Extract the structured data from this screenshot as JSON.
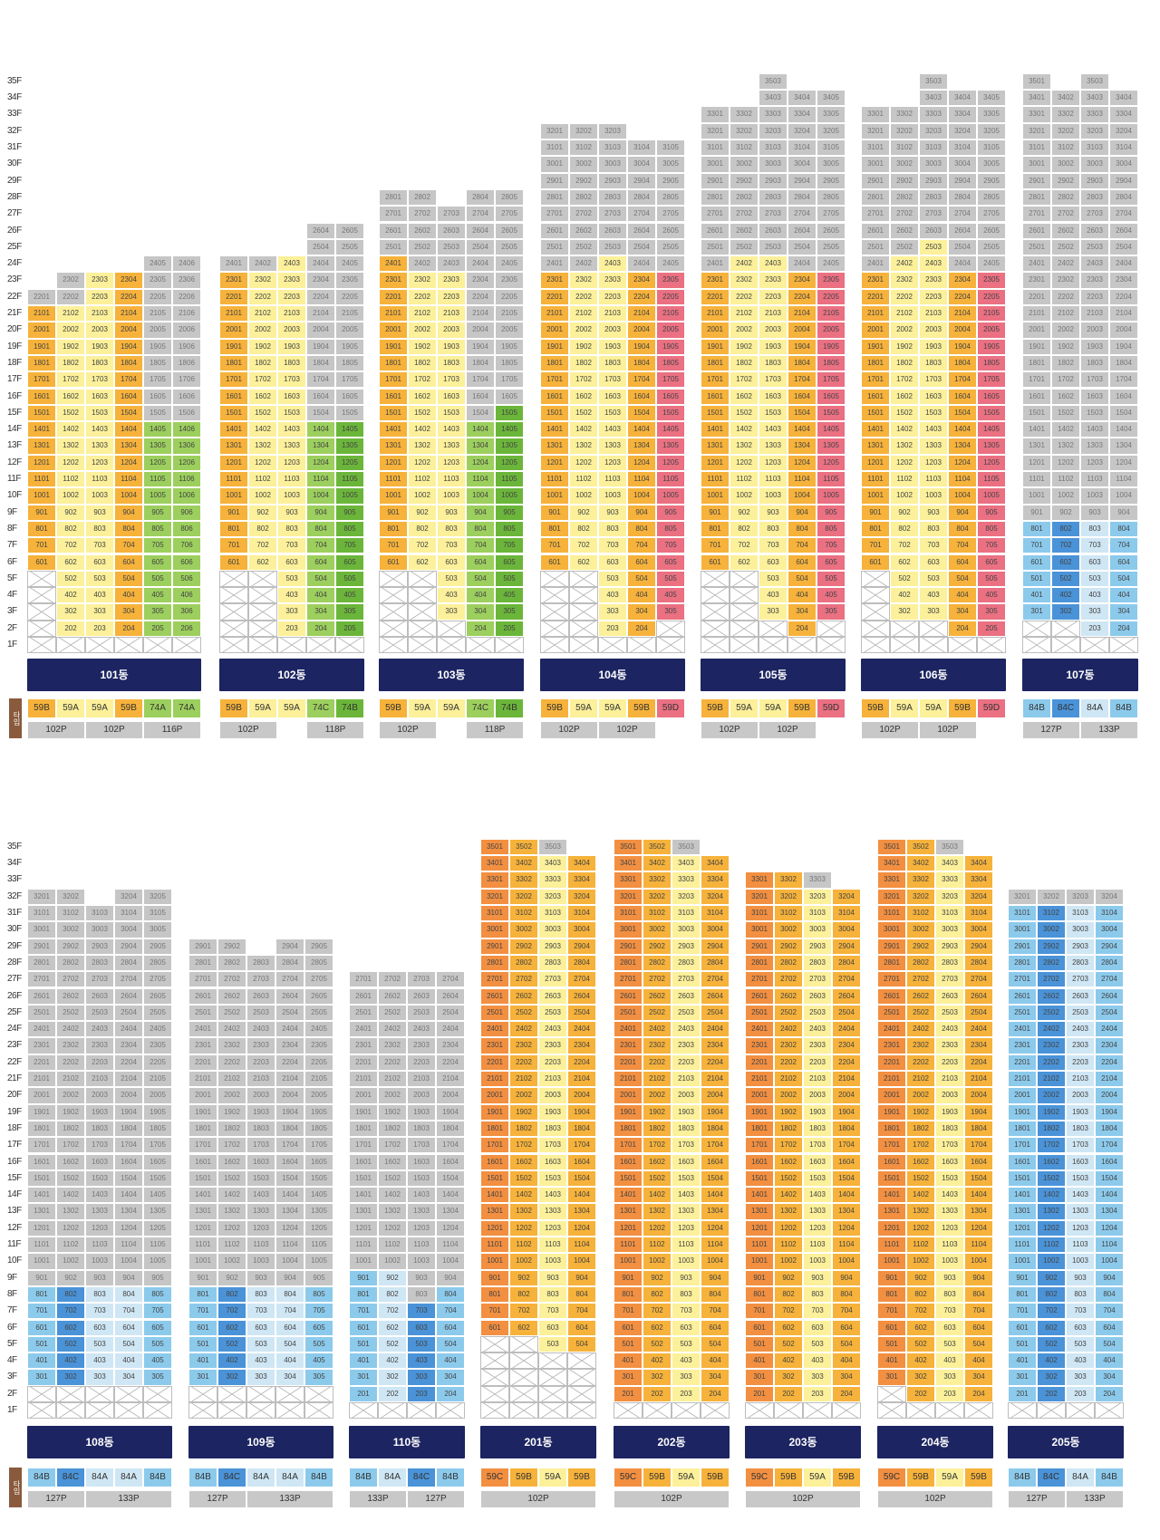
{
  "colors": {
    "59A": "#fcf09a",
    "59B": "#f6b23a",
    "59C": "#f28f41",
    "59D": "#ea7082",
    "74A": "#9ccf5d",
    "74B": "#6bb63a",
    "74C": "#9ccf5d",
    "84A": "#cfe6f4",
    "84B": "#8ccaec",
    "84C": "#4a93d8",
    "sold": "#c6c6c6",
    "bar": "#1c2461",
    "tag": "#8a5a3c"
  },
  "type_tag": "타입",
  "panels": [
    {
      "floor_labels": [
        "35F",
        "34F",
        "33F",
        "32F",
        "31F",
        "30F",
        "29F",
        "28F",
        "27F",
        "26F",
        "25F",
        "24F",
        "23F",
        "22F",
        "21F",
        "20F",
        "19F",
        "18F",
        "17F",
        "16F",
        "15F",
        "14F",
        "13F",
        "12F",
        "11F",
        "10F",
        "9F",
        "8F",
        "7F",
        "6F",
        "5F",
        "4F",
        "3F",
        "2F",
        "1F"
      ],
      "buildings": [
        {
          "label": "101동",
          "cols": 6,
          "max": [
            22,
            23,
            23,
            23,
            24,
            24
          ],
          "avail": [
            [
              6,
              21
            ],
            [
              2,
              21
            ],
            [
              2,
              23
            ],
            [
              2,
              23
            ],
            [
              2,
              14
            ],
            [
              2,
              14
            ]
          ],
          "nums": [
            1,
            2,
            3,
            4,
            5,
            6
          ],
          "types": [
            "59B",
            "59A",
            "59A",
            "59B",
            "74A",
            "74A"
          ],
          "p": [
            [
              "102P",
              2
            ],
            [
              "102P",
              2
            ],
            [
              "116P",
              2
            ]
          ]
        },
        {
          "label": "102동",
          "cols": 5,
          "max": [
            24,
            24,
            24,
            26,
            26
          ],
          "avail": [
            [
              6,
              23
            ],
            [
              6,
              23
            ],
            [
              2,
              24
            ],
            [
              2,
              14
            ],
            [
              2,
              14
            ]
          ],
          "nums": [
            1,
            2,
            3,
            4,
            5
          ],
          "types": [
            "59B",
            "59A",
            "59A",
            "74C",
            "74B"
          ],
          "p": [
            [
              "102P",
              2
            ],
            [
              "",
              1
            ],
            [
              "118P",
              2
            ]
          ]
        },
        {
          "label": "103동",
          "cols": 5,
          "max": [
            28,
            28,
            27,
            28,
            28
          ],
          "avail": [
            [
              6,
              24
            ],
            [
              6,
              23
            ],
            [
              3,
              23
            ],
            [
              2,
              14
            ],
            [
              2,
              15
            ]
          ],
          "nums": [
            1,
            2,
            3,
            4,
            5
          ],
          "types": [
            "59B",
            "59A",
            "59A",
            "74C",
            "74B"
          ],
          "p": [
            [
              "102P",
              2
            ],
            [
              "",
              1
            ],
            [
              "118P",
              2
            ]
          ]
        },
        {
          "label": "104동",
          "cols": 5,
          "max": [
            32,
            32,
            32,
            31,
            31
          ],
          "avail": [
            [
              6,
              23
            ],
            [
              6,
              23
            ],
            [
              2,
              24
            ],
            [
              2,
              23
            ],
            [
              3,
              23
            ]
          ],
          "nums": [
            1,
            2,
            3,
            4,
            5
          ],
          "types": [
            "59B",
            "59A",
            "59A",
            "59B",
            "59D"
          ],
          "p": [
            [
              "102P",
              2
            ],
            [
              "102P",
              2
            ],
            [
              "",
              1
            ]
          ]
        },
        {
          "label": "105동",
          "cols": 5,
          "max": [
            33,
            33,
            35,
            34,
            34
          ],
          "avail": [
            [
              6,
              23
            ],
            [
              6,
              24
            ],
            [
              3,
              24
            ],
            [
              2,
              23
            ],
            [
              3,
              23
            ]
          ],
          "nums": [
            1,
            2,
            3,
            4,
            5
          ],
          "types": [
            "59B",
            "59A",
            "59A",
            "59B",
            "59D"
          ],
          "p": [
            [
              "102P",
              2
            ],
            [
              "102P",
              2
            ],
            [
              "",
              1
            ]
          ]
        },
        {
          "label": "106동",
          "cols": 5,
          "max": [
            33,
            33,
            35,
            34,
            34
          ],
          "avail": [
            [
              6,
              23
            ],
            [
              3,
              24
            ],
            [
              3,
              25
            ],
            [
              2,
              23
            ],
            [
              2,
              23
            ]
          ],
          "nums": [
            1,
            2,
            3,
            4,
            5
          ],
          "types": [
            "59B",
            "59A",
            "59A",
            "59B",
            "59D"
          ],
          "p": [
            [
              "102P",
              2
            ],
            [
              "102P",
              2
            ],
            [
              "",
              1
            ]
          ]
        },
        {
          "label": "107동",
          "cols": 4,
          "max": [
            35,
            34,
            35,
            34
          ],
          "avail": [
            [
              3,
              8
            ],
            [
              3,
              8
            ],
            [
              2,
              8
            ],
            [
              2,
              8
            ]
          ],
          "nums": [
            1,
            2,
            3,
            4
          ],
          "types": [
            "84B",
            "84C",
            "84A",
            "84B"
          ],
          "p": [
            [
              "127P",
              2
            ],
            [
              "133P",
              2
            ]
          ]
        }
      ]
    },
    {
      "floor_labels": [
        "35F",
        "34F",
        "33F",
        "32F",
        "31F",
        "30F",
        "29F",
        "28F",
        "27F",
        "26F",
        "25F",
        "24F",
        "23F",
        "22F",
        "21F",
        "20F",
        "19F",
        "18F",
        "17F",
        "16F",
        "15F",
        "14F",
        "13F",
        "12F",
        "11F",
        "10F",
        "9F",
        "8F",
        "7F",
        "6F",
        "5F",
        "4F",
        "3F",
        "2F",
        "1F"
      ],
      "buildings": [
        {
          "label": "108동",
          "cols": 5,
          "max": [
            32,
            32,
            31,
            32,
            32
          ],
          "avail": [
            [
              3,
              8
            ],
            [
              3,
              8
            ],
            [
              3,
              8
            ],
            [
              3,
              8
            ],
            [
              3,
              8
            ]
          ],
          "nums": [
            1,
            2,
            3,
            4,
            5
          ],
          "types": [
            "84B",
            "84C",
            "84A",
            "84A",
            "84B"
          ],
          "p": [
            [
              "127P",
              2
            ],
            [
              "133P",
              3
            ]
          ]
        },
        {
          "label": "109동",
          "cols": 5,
          "max": [
            29,
            29,
            28,
            29,
            29
          ],
          "avail": [
            [
              3,
              8
            ],
            [
              3,
              8
            ],
            [
              3,
              8
            ],
            [
              3,
              8
            ],
            [
              3,
              8
            ]
          ],
          "nums": [
            1,
            2,
            3,
            4,
            5
          ],
          "types": [
            "84B",
            "84C",
            "84A",
            "84A",
            "84B"
          ],
          "p": [
            [
              "127P",
              2
            ],
            [
              "133P",
              3
            ]
          ]
        },
        {
          "label": "110동",
          "cols": 4,
          "max": [
            27,
            27,
            27,
            27
          ],
          "avail": [
            [
              2,
              9
            ],
            [
              2,
              9
            ],
            [
              2,
              7
            ],
            [
              2,
              8
            ]
          ],
          "nums": [
            1,
            2,
            3,
            4
          ],
          "types": [
            "84B",
            "84A",
            "84C",
            "84B"
          ],
          "p": [
            [
              "133P",
              2
            ],
            [
              "127P",
              2
            ]
          ]
        },
        {
          "label": "201동",
          "cols": 4,
          "max": [
            35,
            35,
            35,
            34
          ],
          "avail": [
            [
              6,
              35
            ],
            [
              6,
              35
            ],
            [
              5,
              34
            ],
            [
              5,
              34
            ]
          ],
          "nums": [
            1,
            2,
            3,
            4
          ],
          "types": [
            "59C",
            "59B",
            "59A",
            "59B"
          ],
          "p": [
            [
              "102P",
              4
            ]
          ]
        },
        {
          "label": "202동",
          "cols": 4,
          "max": [
            35,
            35,
            35,
            34
          ],
          "avail": [
            [
              2,
              35
            ],
            [
              2,
              35
            ],
            [
              2,
              34
            ],
            [
              2,
              34
            ]
          ],
          "nums": [
            1,
            2,
            3,
            4
          ],
          "types": [
            "59C",
            "59B",
            "59A",
            "59B"
          ],
          "p": [
            [
              "102P",
              4
            ]
          ]
        },
        {
          "label": "203동",
          "cols": 4,
          "max": [
            33,
            33,
            33,
            32
          ],
          "avail": [
            [
              2,
              33
            ],
            [
              2,
              33
            ],
            [
              2,
              32
            ],
            [
              2,
              32
            ]
          ],
          "nums": [
            1,
            2,
            3,
            4
          ],
          "types": [
            "59C",
            "59B",
            "59A",
            "59B"
          ],
          "p": [
            [
              "102P",
              4
            ]
          ]
        },
        {
          "label": "204동",
          "cols": 4,
          "max": [
            35,
            35,
            35,
            34
          ],
          "avail": [
            [
              3,
              35
            ],
            [
              2,
              35
            ],
            [
              2,
              34
            ],
            [
              2,
              34
            ]
          ],
          "nums": [
            1,
            2,
            3,
            4
          ],
          "types": [
            "59C",
            "59B",
            "59A",
            "59B"
          ],
          "p": [
            [
              "102P",
              4
            ]
          ]
        },
        {
          "label": "205동",
          "cols": 4,
          "max": [
            32,
            32,
            32,
            32
          ],
          "avail": [
            [
              2,
              31
            ],
            [
              2,
              31
            ],
            [
              2,
              31
            ],
            [
              2,
              31
            ]
          ],
          "nums": [
            1,
            2,
            3,
            4
          ],
          "types": [
            "84B",
            "84C",
            "84A",
            "84B"
          ],
          "p": [
            [
              "127P",
              2
            ],
            [
              "133P",
              2
            ]
          ]
        }
      ]
    }
  ]
}
